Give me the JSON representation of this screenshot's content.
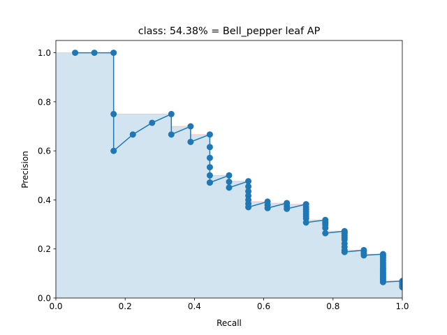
{
  "chart_data": {
    "type": "line",
    "title": "class: 54.38% = Bell_pepper leaf AP",
    "xlabel": "Recall",
    "ylabel": "Precision",
    "xlim": [
      0,
      1
    ],
    "ylim": [
      0,
      1.05
    ],
    "xticks": [
      "0.0",
      "0.2",
      "0.4",
      "0.6",
      "0.8",
      "1.0"
    ],
    "yticks": [
      "0.0",
      "0.2",
      "0.4",
      "0.6",
      "0.8",
      "1.0"
    ],
    "grid": false,
    "colors": {
      "line": "#1f77b4",
      "fill": "#1f77b4",
      "interpolated": "#ff9999"
    },
    "series": [
      {
        "recall": [
          0.0556,
          0.1111,
          0.1667,
          0.1667,
          0.1667,
          0.2222,
          0.2778,
          0.3333,
          0.3333,
          0.3889,
          0.3889,
          0.4444,
          0.4444,
          0.4444,
          0.4444,
          0.4444,
          0.4444,
          0.4444,
          0.5,
          0.5,
          0.5,
          0.5556,
          0.5556,
          0.5556,
          0.5556,
          0.5556,
          0.5556,
          0.5556,
          0.6111,
          0.6111,
          0.6111,
          0.6667,
          0.6667,
          0.6667,
          0.7222,
          0.7222,
          0.7222,
          0.7222,
          0.7222,
          0.7222,
          0.7222,
          0.7222,
          0.7778,
          0.7778,
          0.7778,
          0.7778,
          0.7778,
          0.7778,
          0.8333,
          0.8333,
          0.8333,
          0.8333,
          0.8333,
          0.8333,
          0.8333,
          0.8333,
          0.8333,
          0.8333,
          0.8889,
          0.8889,
          0.8889,
          0.8889,
          0.9444,
          0.9444,
          0.9444,
          0.9444,
          0.9444,
          0.9444,
          0.9444,
          0.9444,
          0.9444,
          0.9444,
          0.9444,
          0.9444,
          0.9444,
          0.9444,
          0.9444,
          0.9444,
          0.9444,
          1.0,
          1.0,
          1.0,
          1.0,
          1.0,
          1.0
        ],
        "precision": [
          1.0,
          1.0,
          1.0,
          0.75,
          0.6,
          0.6667,
          0.7143,
          0.75,
          0.6667,
          0.7,
          0.6364,
          0.6667,
          0.6154,
          0.5714,
          0.5333,
          0.5,
          0.4706,
          0.4706,
          0.5,
          0.4737,
          0.45,
          0.4762,
          0.4545,
          0.4348,
          0.4167,
          0.4,
          0.3846,
          0.3704,
          0.3929,
          0.3793,
          0.3667,
          0.3871,
          0.375,
          0.3636,
          0.3824,
          0.3714,
          0.3611,
          0.3514,
          0.3421,
          0.3333,
          0.3243,
          0.3077,
          0.3182,
          0.3111,
          0.3043,
          0.2979,
          0.2857,
          0.2642,
          0.2727,
          0.2679,
          0.2632,
          0.2542,
          0.2459,
          0.2381,
          0.2222,
          0.2083,
          0.1948,
          0.1875,
          0.1951,
          0.1905,
          0.1818,
          0.1739,
          0.1789,
          0.1717,
          0.1635,
          0.1545,
          0.1453,
          0.1371,
          0.1287,
          0.1205,
          0.1133,
          0.1056,
          0.0992,
          0.0932,
          0.0871,
          0.0819,
          0.0759,
          0.0692,
          0.0649,
          0.0692,
          0.0635,
          0.0571,
          0.0515,
          0.0471,
          0.0442
        ],
        "interpolated_precision": [
          1.0,
          1.0,
          1.0,
          0.75,
          0.75,
          0.75,
          0.75,
          0.75,
          0.7,
          0.7,
          0.6667,
          0.6667,
          0.5,
          0.5,
          0.5,
          0.5,
          0.5,
          0.5,
          0.5,
          0.4762,
          0.4762,
          0.4762,
          0.3929,
          0.3929,
          0.3929,
          0.3929,
          0.3929,
          0.3929,
          0.3929,
          0.3871,
          0.3871,
          0.3871,
          0.3824,
          0.3824,
          0.3824,
          0.3182,
          0.3182,
          0.3182,
          0.3182,
          0.3182,
          0.3182,
          0.3182,
          0.3182,
          0.2727,
          0.2727,
          0.2727,
          0.2727,
          0.2727,
          0.2727,
          0.2679,
          0.2632,
          0.2542,
          0.2459,
          0.2381,
          0.2222,
          0.2083,
          0.1951,
          0.1951,
          0.1951,
          0.1905,
          0.1818,
          0.1789,
          0.1789,
          0.1717,
          0.1635,
          0.1545,
          0.1453,
          0.1371,
          0.1287,
          0.1205,
          0.1133,
          0.1056,
          0.0992,
          0.0932,
          0.0871,
          0.0819,
          0.0759,
          0.0692,
          0.0692,
          0.0692,
          0.0635,
          0.0571,
          0.0515,
          0.0471,
          0.0442
        ]
      }
    ]
  }
}
